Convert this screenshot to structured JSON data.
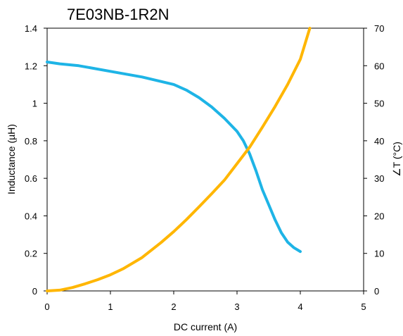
{
  "chart_data": {
    "type": "line",
    "title": "7E03NB-1R2N",
    "xlabel": "DC current (A)",
    "ylabel_left": "Inductance (µH)",
    "ylabel_right": "∠T (°C)",
    "xlim": [
      0,
      5
    ],
    "ylim_left": [
      0,
      1.4
    ],
    "ylim_right": [
      0,
      70
    ],
    "x_ticks": [
      "0",
      "1",
      "2",
      "3",
      "4",
      "5"
    ],
    "y_left_ticks": [
      "0",
      "0.2",
      "0.4",
      "0.6",
      "0.8",
      "1",
      "1.2",
      "1.4"
    ],
    "y_right_ticks": [
      "0",
      "10",
      "20",
      "30",
      "40",
      "50",
      "60",
      "70"
    ],
    "grid": false,
    "legend": "none",
    "series": [
      {
        "axis": "left",
        "color": "#1EB4E6",
        "x": [
          0,
          0.2,
          0.5,
          1.0,
          1.5,
          2.0,
          2.2,
          2.4,
          2.6,
          2.8,
          3.0,
          3.1,
          3.2,
          3.3,
          3.4,
          3.5,
          3.6,
          3.7,
          3.8,
          3.9,
          4.0
        ],
        "y": [
          1.22,
          1.21,
          1.2,
          1.17,
          1.14,
          1.1,
          1.07,
          1.03,
          0.98,
          0.92,
          0.85,
          0.8,
          0.73,
          0.64,
          0.54,
          0.46,
          0.38,
          0.31,
          0.26,
          0.23,
          0.21
        ]
      },
      {
        "axis": "right",
        "color": "#FFB600",
        "x": [
          0,
          0.2,
          0.4,
          0.6,
          0.8,
          1.0,
          1.2,
          1.5,
          1.8,
          2.0,
          2.2,
          2.4,
          2.6,
          2.8,
          3.0,
          3.2,
          3.4,
          3.6,
          3.8,
          4.0,
          4.15
        ],
        "y": [
          0,
          0.2,
          0.9,
          1.9,
          3.0,
          4.3,
          5.9,
          8.9,
          12.9,
          15.8,
          19.0,
          22.4,
          25.9,
          29.5,
          33.9,
          38.3,
          43.6,
          49.1,
          55.0,
          61.7,
          70.0
        ]
      }
    ]
  }
}
